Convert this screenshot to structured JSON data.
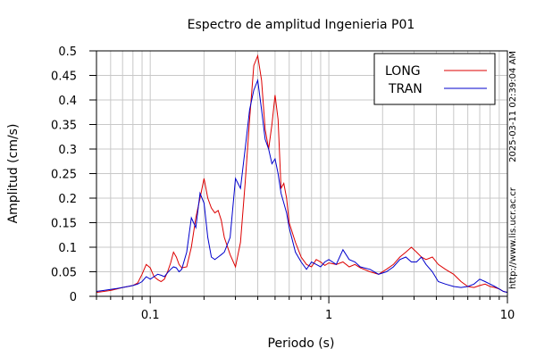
{
  "chart_data": {
    "type": "line",
    "title": "Espectro de amplitud Ingenieria P01",
    "xlabel": "Periodo (s)",
    "ylabel": "Amplitud (cm/s)",
    "x_scale": "log",
    "xlim": [
      0.05,
      10
    ],
    "ylim": [
      0,
      0.5
    ],
    "x_tick_labels": [
      "0.1",
      "1",
      "10"
    ],
    "x_tick_values": [
      0.1,
      1,
      10
    ],
    "y_tick_labels": [
      "0",
      "0.05",
      "0.1",
      "0.15",
      "0.2",
      "0.25",
      "0.3",
      "0.35",
      "0.4",
      "0.45",
      "0.5"
    ],
    "y_tick_values": [
      0,
      0.05,
      0.1,
      0.15,
      0.2,
      0.25,
      0.3,
      0.35,
      0.4,
      0.45,
      0.5
    ],
    "grid": true,
    "legend_position": "top-right",
    "series": [
      {
        "name": "LONG",
        "color": "#dd0000",
        "x": [
          0.05,
          0.055,
          0.06,
          0.065,
          0.07,
          0.075,
          0.08,
          0.085,
          0.09,
          0.095,
          0.1,
          0.105,
          0.11,
          0.115,
          0.12,
          0.125,
          0.13,
          0.135,
          0.14,
          0.145,
          0.15,
          0.16,
          0.17,
          0.18,
          0.19,
          0.2,
          0.21,
          0.22,
          0.23,
          0.24,
          0.25,
          0.26,
          0.28,
          0.3,
          0.32,
          0.34,
          0.36,
          0.38,
          0.4,
          0.42,
          0.44,
          0.46,
          0.48,
          0.5,
          0.52,
          0.54,
          0.56,
          0.58,
          0.6,
          0.65,
          0.7,
          0.75,
          0.8,
          0.85,
          0.9,
          0.95,
          1.0,
          1.1,
          1.2,
          1.3,
          1.4,
          1.5,
          1.7,
          1.9,
          2.1,
          2.3,
          2.5,
          2.7,
          2.9,
          3.1,
          3.3,
          3.5,
          3.8,
          4.1,
          4.5,
          5.0,
          5.5,
          6.0,
          6.5,
          7.0,
          7.5,
          8.0,
          8.5,
          9.0,
          9.5,
          10.0
        ],
        "y": [
          0.008,
          0.01,
          0.012,
          0.015,
          0.018,
          0.02,
          0.022,
          0.027,
          0.045,
          0.065,
          0.058,
          0.04,
          0.034,
          0.03,
          0.035,
          0.05,
          0.068,
          0.09,
          0.08,
          0.065,
          0.058,
          0.06,
          0.1,
          0.16,
          0.2,
          0.24,
          0.2,
          0.18,
          0.17,
          0.175,
          0.155,
          0.12,
          0.085,
          0.06,
          0.11,
          0.23,
          0.36,
          0.47,
          0.49,
          0.44,
          0.34,
          0.3,
          0.35,
          0.41,
          0.36,
          0.22,
          0.23,
          0.2,
          0.15,
          0.11,
          0.08,
          0.065,
          0.06,
          0.075,
          0.07,
          0.063,
          0.068,
          0.065,
          0.07,
          0.06,
          0.065,
          0.058,
          0.05,
          0.045,
          0.055,
          0.065,
          0.08,
          0.09,
          0.1,
          0.09,
          0.08,
          0.075,
          0.08,
          0.065,
          0.055,
          0.045,
          0.03,
          0.02,
          0.018,
          0.022,
          0.025,
          0.02,
          0.018,
          0.015,
          0.01,
          0.008
        ]
      },
      {
        "name": "TRAN",
        "color": "#0000cc",
        "x": [
          0.05,
          0.055,
          0.06,
          0.065,
          0.07,
          0.075,
          0.08,
          0.085,
          0.09,
          0.095,
          0.1,
          0.105,
          0.11,
          0.115,
          0.12,
          0.125,
          0.13,
          0.135,
          0.14,
          0.145,
          0.15,
          0.16,
          0.17,
          0.18,
          0.19,
          0.2,
          0.21,
          0.22,
          0.23,
          0.24,
          0.25,
          0.26,
          0.28,
          0.3,
          0.32,
          0.34,
          0.36,
          0.38,
          0.4,
          0.42,
          0.44,
          0.46,
          0.48,
          0.5,
          0.52,
          0.54,
          0.56,
          0.58,
          0.6,
          0.65,
          0.7,
          0.75,
          0.8,
          0.85,
          0.9,
          0.95,
          1.0,
          1.1,
          1.2,
          1.3,
          1.4,
          1.5,
          1.7,
          1.9,
          2.1,
          2.3,
          2.5,
          2.7,
          2.9,
          3.1,
          3.3,
          3.5,
          3.8,
          4.1,
          4.5,
          5.0,
          5.5,
          6.0,
          6.5,
          7.0,
          7.5,
          8.0,
          8.5,
          9.0,
          9.5,
          10.0
        ],
        "y": [
          0.01,
          0.012,
          0.014,
          0.016,
          0.018,
          0.02,
          0.022,
          0.025,
          0.03,
          0.04,
          0.035,
          0.04,
          0.045,
          0.043,
          0.04,
          0.048,
          0.055,
          0.06,
          0.058,
          0.05,
          0.055,
          0.09,
          0.16,
          0.14,
          0.21,
          0.19,
          0.12,
          0.08,
          0.075,
          0.08,
          0.085,
          0.09,
          0.12,
          0.24,
          0.22,
          0.3,
          0.38,
          0.42,
          0.44,
          0.38,
          0.32,
          0.3,
          0.27,
          0.28,
          0.25,
          0.21,
          0.19,
          0.17,
          0.14,
          0.09,
          0.07,
          0.055,
          0.07,
          0.065,
          0.06,
          0.07,
          0.075,
          0.065,
          0.095,
          0.075,
          0.07,
          0.06,
          0.055,
          0.045,
          0.05,
          0.06,
          0.075,
          0.08,
          0.07,
          0.07,
          0.08,
          0.065,
          0.05,
          0.03,
          0.025,
          0.02,
          0.018,
          0.02,
          0.025,
          0.035,
          0.03,
          0.025,
          0.02,
          0.015,
          0.01,
          0.008
        ]
      }
    ],
    "side_labels": [
      "2025-03-11 02:39:04 AM",
      "http://www.lis.ucr.ac.cr"
    ]
  }
}
